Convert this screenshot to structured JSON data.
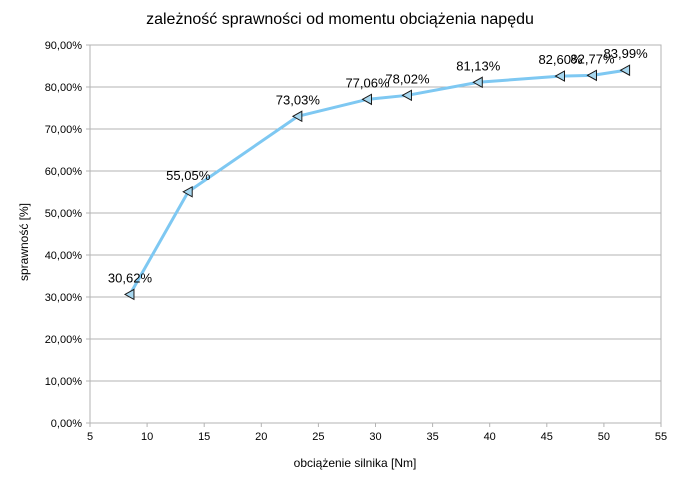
{
  "chart_data": {
    "type": "line",
    "title": "zależność sprawności od momentu obciążenia napędu",
    "xlabel": "obciążenie silnika [Nm]",
    "ylabel": "sprawność [%]",
    "xlim": [
      5,
      55
    ],
    "ylim": [
      0,
      0.9
    ],
    "x_ticks": [
      5,
      10,
      15,
      20,
      25,
      30,
      35,
      40,
      45,
      50,
      55
    ],
    "x_tick_labels": [
      "5",
      "10",
      "15",
      "20",
      "25",
      "30",
      "35",
      "40",
      "45",
      "50",
      "55"
    ],
    "y_ticks": [
      0,
      0.1,
      0.2,
      0.3,
      0.4,
      0.5,
      0.6,
      0.7,
      0.8,
      0.9
    ],
    "y_tick_labels": [
      "0,00%",
      "10,00%",
      "20,00%",
      "30,00%",
      "40,00%",
      "50,00%",
      "60,00%",
      "70,00%",
      "80,00%",
      "90,00%"
    ],
    "grid": "horizontal",
    "series": [
      {
        "color": "#7ec8f2",
        "marker_color": "#a8d8f0",
        "marker": "triangle-left",
        "x": [
          8.5,
          13.6,
          23.2,
          29.3,
          32.8,
          39.0,
          46.2,
          49.0,
          51.9
        ],
        "y": [
          0.3062,
          0.5505,
          0.7303,
          0.7706,
          0.7802,
          0.8113,
          0.826,
          0.8277,
          0.8399
        ],
        "labels": [
          "30,62%",
          "55,05%",
          "73,03%",
          "77,06%",
          "78,02%",
          "81,13%",
          "82,60%",
          "82,77%",
          "83,99%"
        ]
      }
    ]
  }
}
